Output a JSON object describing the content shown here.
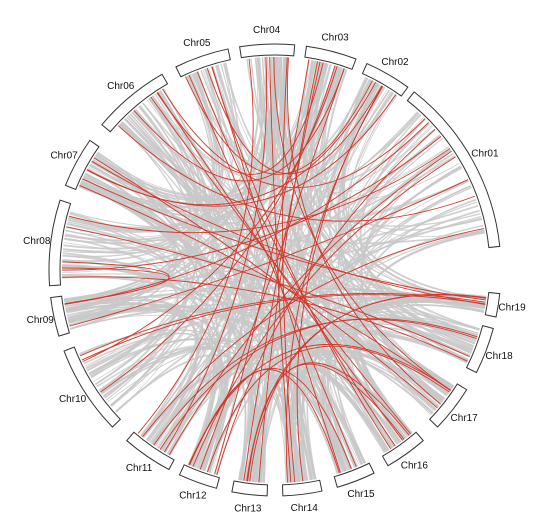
{
  "diagram": {
    "type": "circos",
    "chromosomes": [
      "Chr01",
      "Chr02",
      "Chr03",
      "Chr04",
      "Chr05",
      "Chr06",
      "Chr07",
      "Chr08",
      "Chr09",
      "Chr10",
      "Chr11",
      "Chr12",
      "Chr13",
      "Chr14",
      "Chr15",
      "Chr16",
      "Chr17",
      "Chr18",
      "Chr19"
    ],
    "colors": {
      "background_links": "#c8c8c8",
      "highlight_links": "#d0382b",
      "ideogram_outline": "#333333"
    },
    "highlight_links": [
      [
        "Chr05",
        "Chr02"
      ],
      [
        "Chr04",
        "Chr17"
      ],
      [
        "Chr03",
        "Chr13"
      ],
      [
        "Chr03",
        "Chr12"
      ],
      [
        "Chr02",
        "Chr07"
      ],
      [
        "Chr01",
        "Chr11"
      ],
      [
        "Chr01",
        "Chr12"
      ],
      [
        "Chr06",
        "Chr01"
      ],
      [
        "Chr07",
        "Chr19"
      ],
      [
        "Chr08",
        "Chr09"
      ],
      [
        "Chr08",
        "Chr01"
      ],
      [
        "Chr09",
        "Chr01"
      ],
      [
        "Chr10",
        "Chr03"
      ],
      [
        "Chr11",
        "Chr04"
      ],
      [
        "Chr12",
        "Chr15"
      ],
      [
        "Chr13",
        "Chr16"
      ],
      [
        "Chr14",
        "Chr04"
      ],
      [
        "Chr15",
        "Chr05"
      ],
      [
        "Chr16",
        "Chr06"
      ],
      [
        "Chr17",
        "Chr07"
      ],
      [
        "Chr18",
        "Chr08"
      ],
      [
        "Chr19",
        "Chr10"
      ],
      [
        "Chr12",
        "Chr17"
      ],
      [
        "Chr13",
        "Chr19"
      ],
      [
        "Chr14",
        "Chr02"
      ],
      [
        "Chr05",
        "Chr16"
      ],
      [
        "Chr06",
        "Chr03"
      ],
      [
        "Chr11",
        "Chr18"
      ]
    ]
  }
}
